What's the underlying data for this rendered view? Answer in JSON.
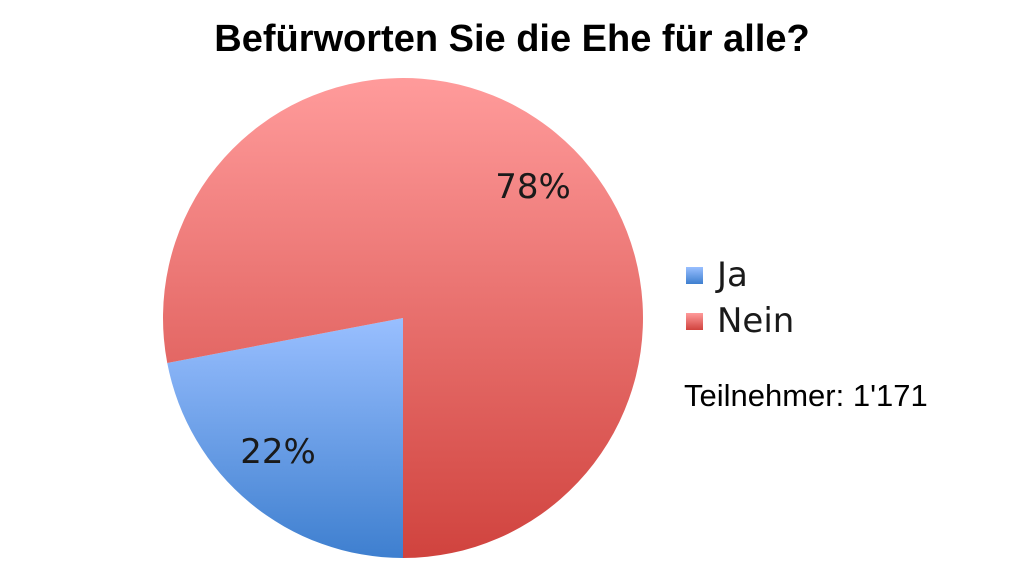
{
  "chart_data": {
    "type": "pie",
    "title": "Befürworten Sie die Ehe für alle?",
    "slices": [
      {
        "label": "Ja",
        "value": 22,
        "display": "22%",
        "color_top": "#99BFFF",
        "color_bottom": "#3E7FCF"
      },
      {
        "label": "Nein",
        "value": 78,
        "display": "78%",
        "color_top": "#FF9B9B",
        "color_bottom": "#D0433E"
      }
    ],
    "legend_position": "right",
    "annotation": "Teilnehmer: 1'171"
  }
}
